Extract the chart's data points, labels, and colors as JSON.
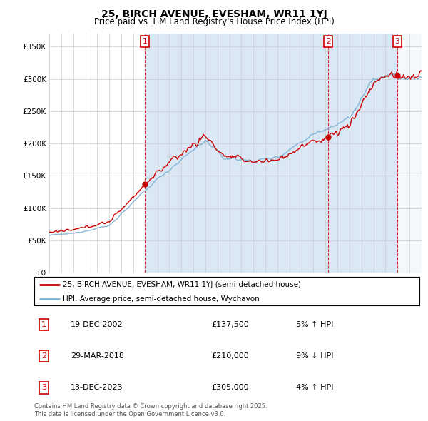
{
  "title": "25, BIRCH AVENUE, EVESHAM, WR11 1YJ",
  "subtitle": "Price paid vs. HM Land Registry's House Price Index (HPI)",
  "legend_line1": "25, BIRCH AVENUE, EVESHAM, WR11 1YJ (semi-detached house)",
  "legend_line2": "HPI: Average price, semi-detached house, Wychavon",
  "footnote": "Contains HM Land Registry data © Crown copyright and database right 2025.\nThis data is licensed under the Open Government Licence v3.0.",
  "transaction_labels": [
    {
      "num": "1",
      "date": "19-DEC-2002",
      "price": "£137,500",
      "change": "5% ↑ HPI"
    },
    {
      "num": "2",
      "date": "29-MAR-2018",
      "price": "£210,000",
      "change": "9% ↓ HPI"
    },
    {
      "num": "3",
      "date": "13-DEC-2023",
      "price": "£305,000",
      "change": "4% ↑ HPI"
    }
  ],
  "sale_years": [
    2002.97,
    2018.24,
    2023.96
  ],
  "sale_prices": [
    137500,
    210000,
    305000
  ],
  "price_color": "#cc0000",
  "hpi_color": "#7bafd4",
  "hpi_fill_color": "#dae8f5",
  "background_color": "#ffffff",
  "grid_color": "#cccccc",
  "shade_color": "#dae8f5",
  "hatch_color": "#bbbbbb",
  "ylim": [
    0,
    370000
  ],
  "yticks": [
    0,
    50000,
    100000,
    150000,
    200000,
    250000,
    300000,
    350000
  ],
  "year_start": 1995,
  "year_end": 2026,
  "transaction_box_color": "#cc0000"
}
